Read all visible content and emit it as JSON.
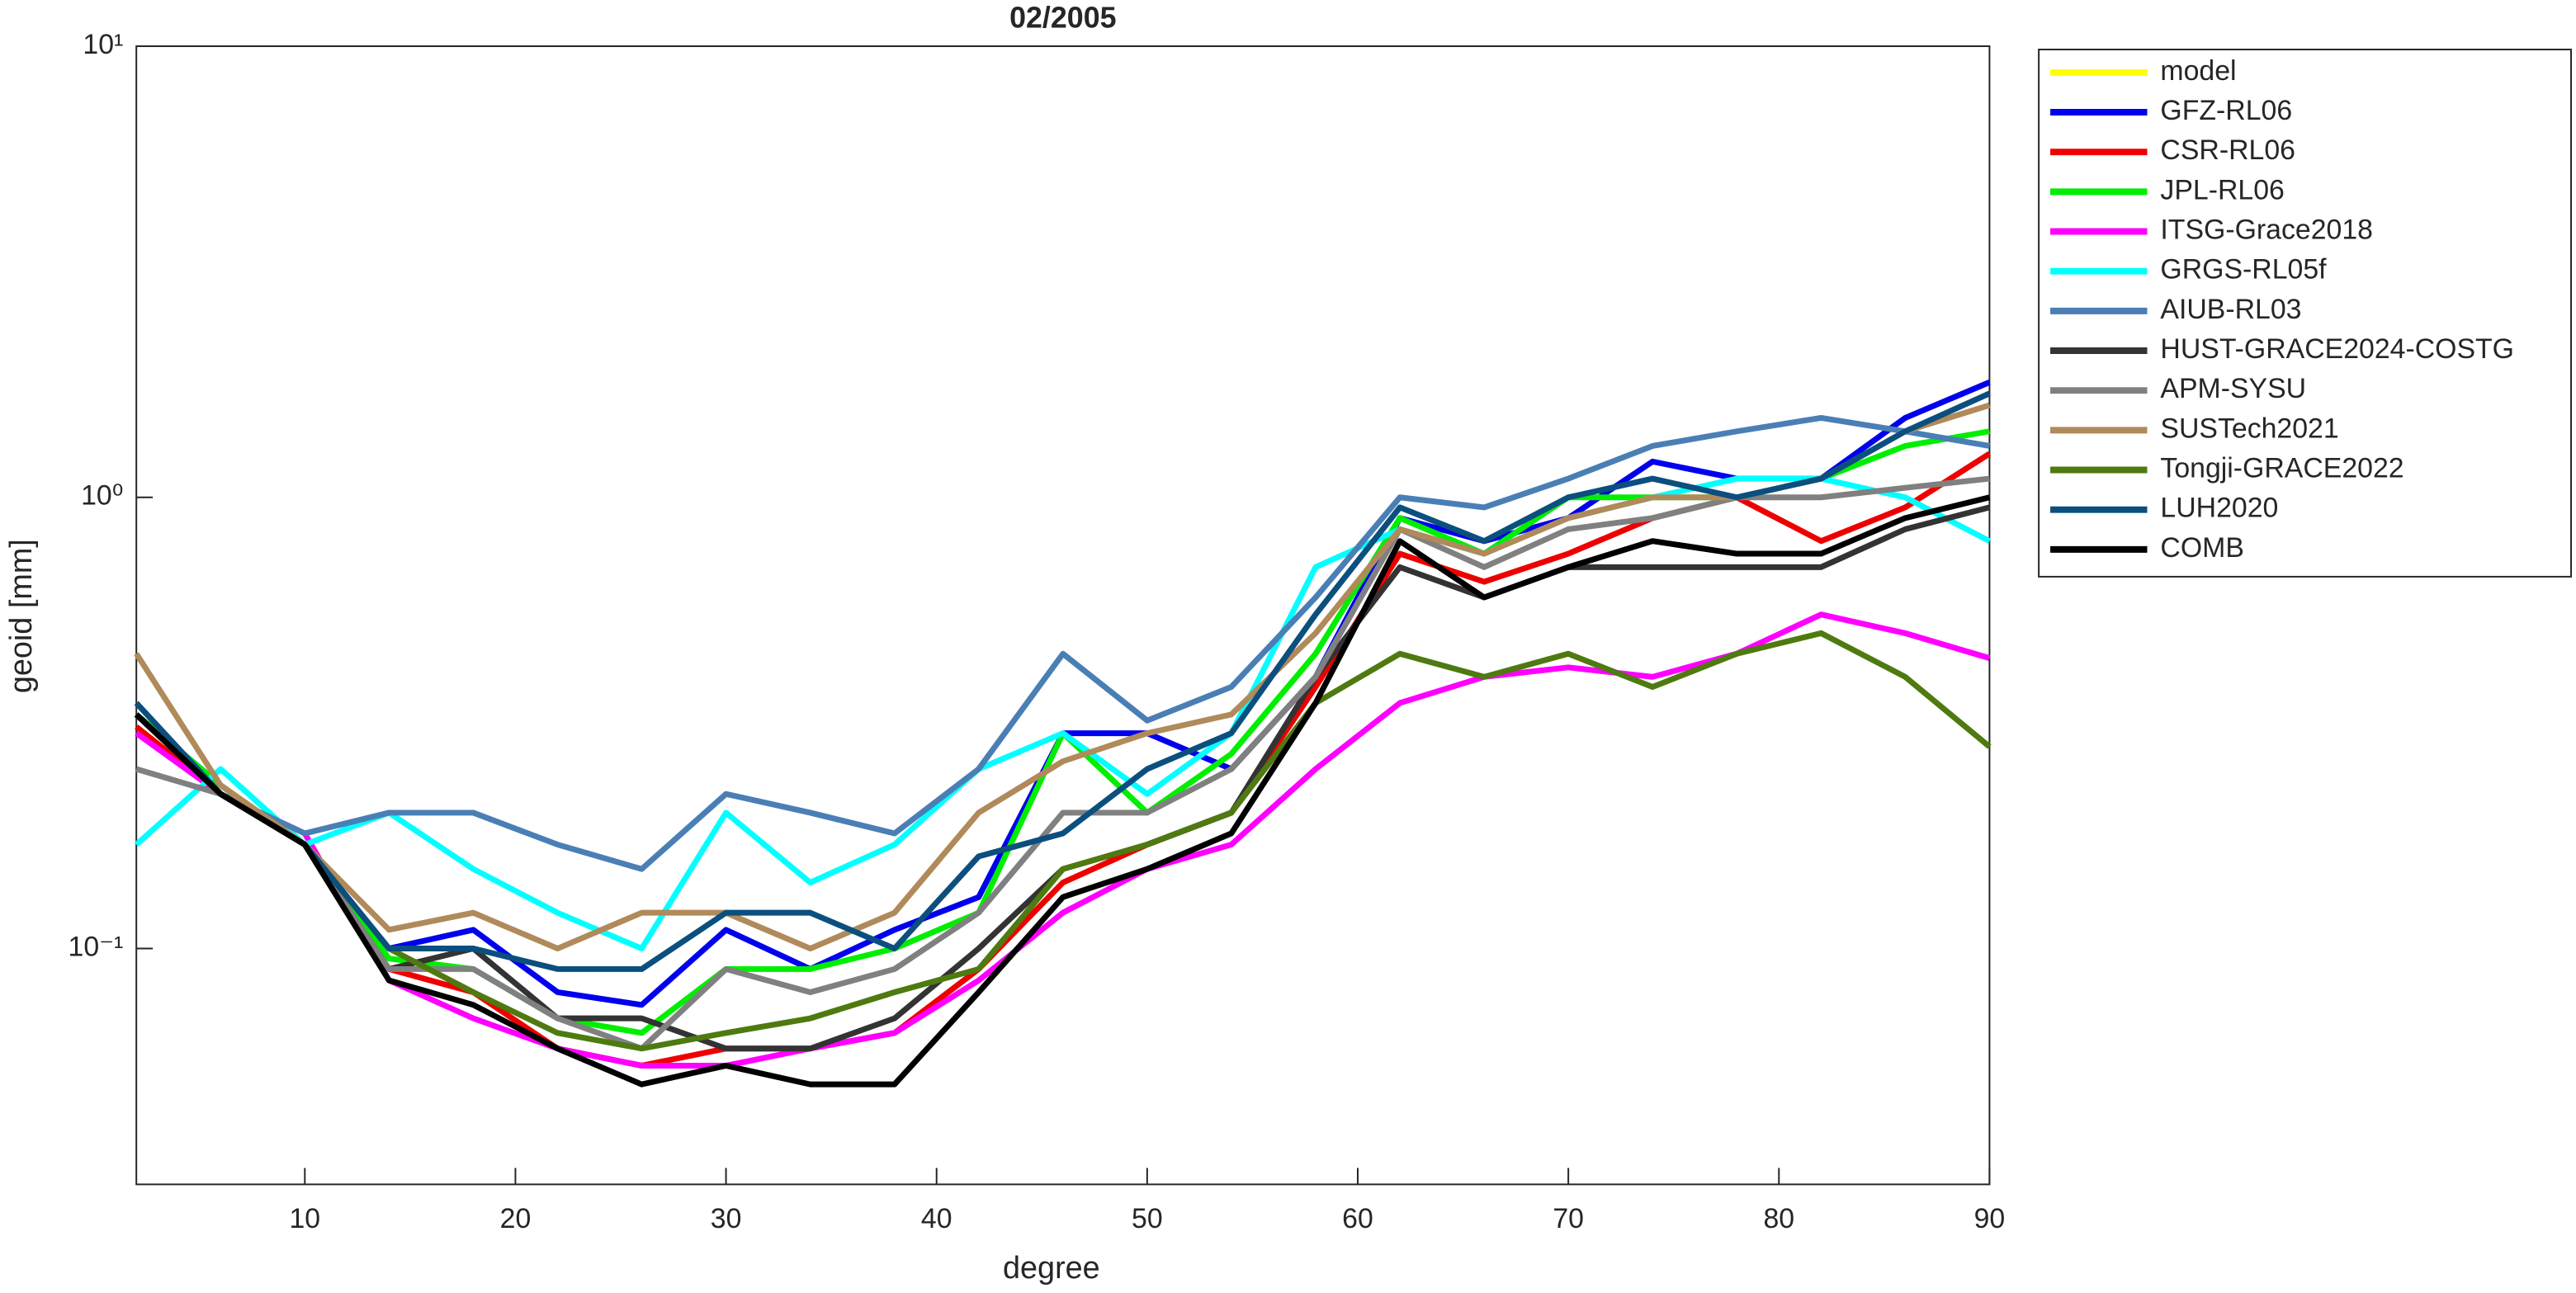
{
  "chart_data": {
    "type": "line",
    "title": "02/2005",
    "xlabel": "degree",
    "ylabel": "geoid [mm]",
    "x": [
      2,
      6,
      10,
      14,
      18,
      22,
      26,
      30,
      34,
      38,
      42,
      46,
      50,
      54,
      58,
      62,
      66,
      70,
      74,
      78,
      82,
      86,
      90
    ],
    "xlim": [
      2,
      90
    ],
    "xticks": [
      10,
      20,
      30,
      40,
      50,
      60,
      70,
      80,
      90
    ],
    "ylim": [
      0.03,
      10
    ],
    "yscale": "log",
    "yticks": [
      {
        "value": 0.1,
        "label": "10⁻¹"
      },
      {
        "value": 1,
        "label": "10⁰"
      },
      {
        "value": 10,
        "label": "10¹"
      }
    ],
    "legend": "outside-right",
    "series": [
      {
        "name": "model",
        "color": "#ffff00",
        "values": [
          null,
          null,
          null,
          null,
          null,
          null,
          null,
          null,
          null,
          null,
          null,
          null,
          null,
          null,
          null,
          null,
          null,
          null,
          null,
          null,
          null,
          null,
          null
        ]
      },
      {
        "name": "GFZ-RL06",
        "color": "#0000ee",
        "values": [
          0.33,
          0.23,
          0.17,
          0.1,
          0.11,
          0.08,
          0.075,
          0.11,
          0.09,
          0.11,
          0.13,
          0.3,
          0.3,
          0.25,
          0.4,
          0.9,
          0.8,
          0.9,
          1.2,
          1.1,
          1.1,
          1.5,
          1.8
        ]
      },
      {
        "name": "CSR-RL06",
        "color": "#ee0000",
        "values": [
          0.31,
          0.22,
          0.17,
          0.09,
          0.08,
          0.06,
          0.055,
          0.06,
          0.06,
          0.065,
          0.09,
          0.14,
          0.17,
          0.2,
          0.38,
          0.75,
          0.65,
          0.75,
          0.9,
          1.0,
          0.8,
          0.95,
          1.25
        ]
      },
      {
        "name": "JPL-RL06",
        "color": "#00ee00",
        "values": [
          0.33,
          0.23,
          0.17,
          0.095,
          0.09,
          0.07,
          0.065,
          0.09,
          0.09,
          0.1,
          0.12,
          0.3,
          0.2,
          0.27,
          0.45,
          0.9,
          0.75,
          1.0,
          1.0,
          1.0,
          1.1,
          1.3,
          1.4
        ]
      },
      {
        "name": "ITSG-Grace2018",
        "color": "#ff00ff",
        "values": [
          0.3,
          0.22,
          0.18,
          0.085,
          0.07,
          0.06,
          0.055,
          0.055,
          0.06,
          0.065,
          0.085,
          0.12,
          0.15,
          0.17,
          0.25,
          0.35,
          0.4,
          0.42,
          0.4,
          0.45,
          0.55,
          0.5,
          0.44
        ]
      },
      {
        "name": "GRGS-RL05f",
        "color": "#00ffff",
        "values": [
          0.17,
          0.25,
          0.17,
          0.2,
          0.15,
          0.12,
          0.1,
          0.2,
          0.14,
          0.17,
          0.25,
          0.3,
          0.22,
          0.3,
          0.7,
          0.85,
          0.75,
          0.9,
          1.0,
          1.1,
          1.1,
          1.0,
          0.8
        ]
      },
      {
        "name": "AIUB-RL03",
        "color": "#4a7fb5",
        "values": [
          0.33,
          0.22,
          0.18,
          0.2,
          0.2,
          0.17,
          0.15,
          0.22,
          0.2,
          0.18,
          0.25,
          0.45,
          0.32,
          0.38,
          0.6,
          1.0,
          0.95,
          1.1,
          1.3,
          1.4,
          1.5,
          1.4,
          1.3
        ]
      },
      {
        "name": "HUST-GRACE2024-COSTG",
        "color": "#333333",
        "values": [
          0.33,
          0.22,
          0.17,
          0.09,
          0.1,
          0.07,
          0.07,
          0.06,
          0.06,
          0.07,
          0.1,
          0.15,
          0.17,
          0.2,
          0.4,
          0.7,
          0.6,
          0.7,
          0.7,
          0.7,
          0.7,
          0.85,
          0.95
        ]
      },
      {
        "name": "APM-SYSU",
        "color": "#808080",
        "values": [
          0.25,
          0.22,
          0.17,
          0.09,
          0.09,
          0.07,
          0.06,
          0.09,
          0.08,
          0.09,
          0.12,
          0.2,
          0.2,
          0.25,
          0.4,
          0.85,
          0.7,
          0.85,
          0.9,
          1.0,
          1.0,
          1.05,
          1.1
        ]
      },
      {
        "name": "SUSTech2021",
        "color": "#b08a5a",
        "values": [
          0.45,
          0.23,
          0.17,
          0.11,
          0.12,
          0.1,
          0.12,
          0.12,
          0.1,
          0.12,
          0.2,
          0.26,
          0.3,
          0.33,
          0.5,
          0.85,
          0.75,
          0.9,
          1.0,
          1.0,
          1.1,
          1.4,
          1.6
        ]
      },
      {
        "name": "Tongji-GRACE2022",
        "color": "#4e7a10",
        "values": [
          0.33,
          0.22,
          0.17,
          0.1,
          0.08,
          0.065,
          0.06,
          0.065,
          0.07,
          0.08,
          0.09,
          0.15,
          0.17,
          0.2,
          0.35,
          0.45,
          0.4,
          0.45,
          0.38,
          0.45,
          0.5,
          0.4,
          0.28
        ]
      },
      {
        "name": "LUH2020",
        "color": "#0b4f7e",
        "values": [
          0.35,
          0.22,
          0.17,
          0.1,
          0.1,
          0.09,
          0.09,
          0.12,
          0.12,
          0.1,
          0.16,
          0.18,
          0.25,
          0.3,
          0.55,
          0.95,
          0.8,
          1.0,
          1.1,
          1.0,
          1.1,
          1.4,
          1.7
        ]
      },
      {
        "name": "COMB",
        "color": "#000000",
        "values": [
          0.33,
          0.22,
          0.17,
          0.085,
          0.075,
          0.06,
          0.05,
          0.055,
          0.05,
          0.05,
          0.08,
          0.13,
          0.15,
          0.18,
          0.35,
          0.8,
          0.6,
          0.7,
          0.8,
          0.75,
          0.75,
          0.9,
          1.0
        ]
      }
    ]
  }
}
